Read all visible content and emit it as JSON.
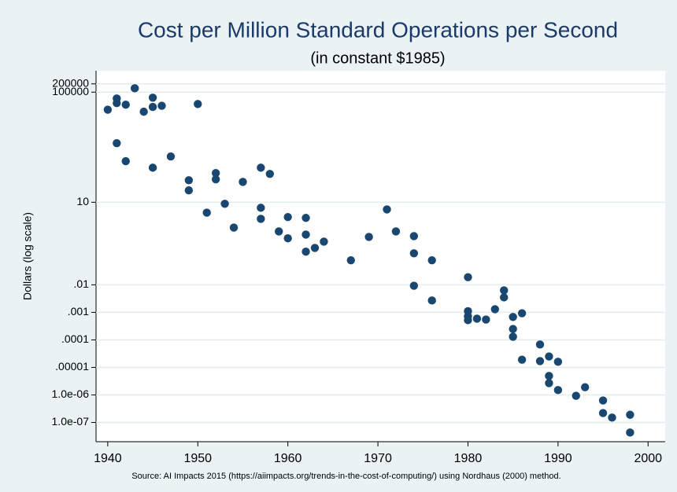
{
  "chart_data": {
    "type": "scatter",
    "title": "Cost per Million Standard Operations per Second",
    "subtitle": "(in constant $1985)",
    "y_label": "Dollars (log scale)",
    "source": "Source: AI Impacts 2015 (https://aiimpacts.org/trends-in-the-cost-of-computing/) using Nordhaus (2000) method.",
    "log_y": true,
    "grid": true,
    "color": "#1a476f",
    "xlim": [
      1938.7,
      2001.9
    ],
    "xticks": [
      1940,
      1950,
      1960,
      1970,
      1980,
      1990,
      2000
    ],
    "ylim": [
      2e-08,
      600000
    ],
    "yticks": [
      200000,
      100000,
      10,
      {
        "value": 0.01,
        "label": ".01"
      },
      {
        "value": 0.001,
        "label": ".001"
      },
      {
        "value": 0.0001,
        "label": ".0001"
      },
      {
        "value": 1e-05,
        "label": ".00001"
      },
      {
        "value": 1e-06,
        "label": "1.0e-06"
      },
      {
        "value": 1e-07,
        "label": "1.0e-07"
      }
    ],
    "x": [
      1940,
      1941,
      1941,
      1942,
      1943,
      1944,
      1945,
      1945,
      1946,
      1950,
      1941,
      1942,
      1947,
      1945,
      1949,
      1949,
      1952,
      1952,
      1955,
      1957,
      1958,
      1951,
      1953,
      1954,
      1957,
      1957,
      1959,
      1960,
      1960,
      1962,
      1962,
      1962,
      1963,
      1964,
      1967,
      1969,
      1971,
      1972,
      1974,
      1974,
      1974,
      1976,
      1976,
      1980,
      1980,
      1980,
      1980,
      1981,
      1982,
      1983,
      1984,
      1984,
      1985,
      1985,
      1985,
      1986,
      1986,
      1988,
      1988,
      1989,
      1989,
      1989,
      1990,
      1990,
      1992,
      1993,
      1995,
      1995,
      1996,
      1998,
      1998
    ],
    "values": [
      23000,
      59000,
      40000,
      35000,
      138000,
      19500,
      63000,
      29000,
      32000,
      37000,
      1400,
      310,
      460,
      180,
      63,
      27,
      115,
      68,
      55,
      180,
      107,
      4.2,
      8.8,
      1.2,
      6.3,
      2.5,
      0.87,
      2.9,
      0.49,
      2.7,
      0.67,
      0.16,
      0.22,
      0.37,
      0.078,
      0.55,
      5.5,
      0.87,
      0.59,
      0.14,
      0.0093,
      0.078,
      0.0027,
      0.019,
      0.0011,
      0.00072,
      0.00052,
      0.00059,
      0.00055,
      0.0013,
      0.0063,
      0.0035,
      0.00068,
      0.00025,
      0.00013,
      0.00093,
      1.9e-05,
      6.8e-05,
      1.7e-05,
      2.5e-05,
      4.9e-06,
      2.7e-06,
      1.6e-05,
      1.5e-06,
      9.3e-07,
      1.9e-06,
      6.3e-07,
      2.2e-07,
      1.5e-07,
      1.9e-07,
      4.3e-08
    ]
  }
}
